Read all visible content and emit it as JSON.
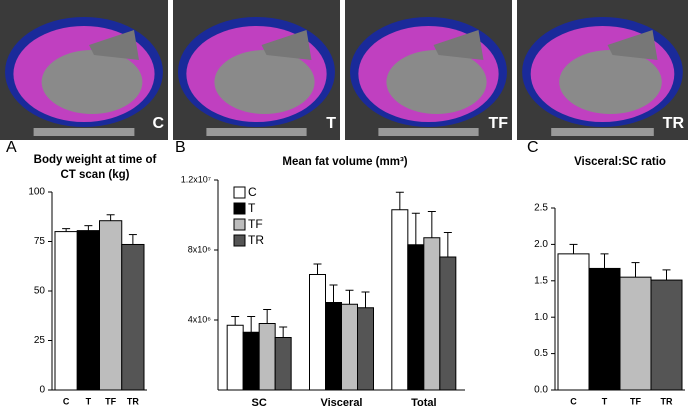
{
  "image_panels": {
    "labels": [
      "C",
      "T",
      "TF",
      "TR"
    ]
  },
  "chart_data": [
    {
      "type": "bar",
      "panel": "A",
      "title": "Body weight at time of CT scan (kg)",
      "categories": [
        "C",
        "T",
        "TF",
        "TR"
      ],
      "values": [
        80,
        80.5,
        85.5,
        73.5
      ],
      "errors": [
        1.5,
        2.5,
        3,
        5
      ],
      "colors": [
        "#ffffff",
        "#000000",
        "#bdbdbd",
        "#555555"
      ],
      "ylim": [
        0,
        100
      ],
      "yticks": [
        0,
        25,
        50,
        75,
        100
      ]
    },
    {
      "type": "grouped-bar",
      "panel": "B",
      "title": "Mean fat volume (mm³)",
      "categories": [
        "SC",
        "Visceral",
        "Total"
      ],
      "series": [
        {
          "name": "C",
          "color": "#ffffff",
          "values": [
            3700000,
            6600000,
            10300000
          ],
          "errors": [
            500000,
            600000,
            1000000
          ]
        },
        {
          "name": "T",
          "color": "#000000",
          "values": [
            3300000,
            5000000,
            8300000
          ],
          "errors": [
            900000,
            1000000,
            1800000
          ]
        },
        {
          "name": "TF",
          "color": "#bdbdbd",
          "values": [
            3800000,
            4900000,
            8700000
          ],
          "errors": [
            800000,
            800000,
            1500000
          ]
        },
        {
          "name": "TR",
          "color": "#555555",
          "values": [
            3000000,
            4700000,
            7600000
          ],
          "errors": [
            600000,
            900000,
            1400000
          ]
        }
      ],
      "ylim": [
        0,
        12000000
      ],
      "yticks": [
        {
          "value": 4000000,
          "label": "4x10⁶"
        },
        {
          "value": 8000000,
          "label": "8x10⁶"
        },
        {
          "value": 12000000,
          "label": "1.2x10⁷"
        }
      ],
      "legend": "top-left"
    },
    {
      "type": "bar",
      "panel": "C",
      "title": "Visceral:SC ratio",
      "categories": [
        "C",
        "T",
        "TF",
        "TR"
      ],
      "values": [
        1.87,
        1.67,
        1.55,
        1.51
      ],
      "errors": [
        0.13,
        0.2,
        0.2,
        0.14
      ],
      "colors": [
        "#ffffff",
        "#000000",
        "#bdbdbd",
        "#555555"
      ],
      "ylim": [
        0,
        2.5
      ],
      "yticks": [
        {
          "value": 0,
          "label": "0.0"
        },
        0.5,
        {
          "value": 1,
          "label": "1.0"
        },
        1.5,
        {
          "value": 2,
          "label": "2.0"
        },
        2.5
      ]
    }
  ]
}
